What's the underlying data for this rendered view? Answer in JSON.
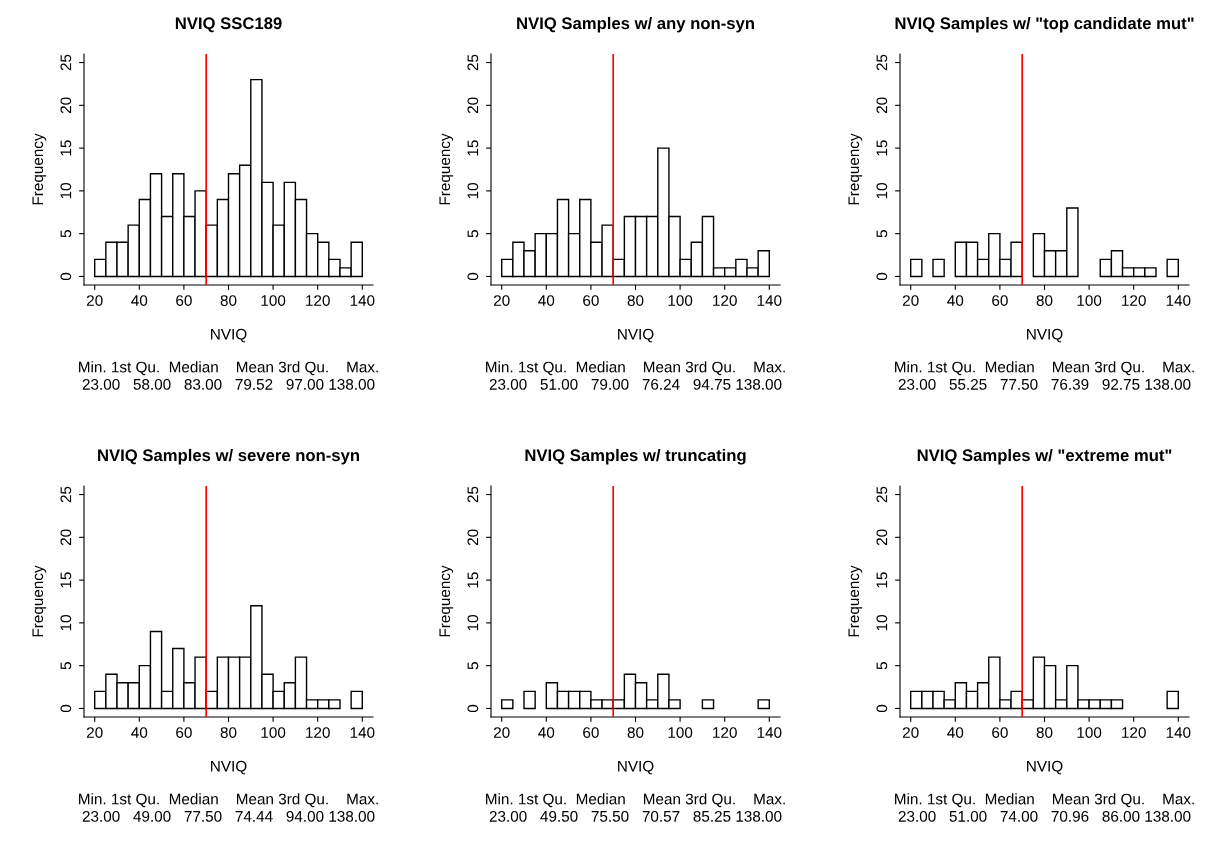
{
  "chart_data": [
    {
      "type": "histogram",
      "title": "NVIQ SSC189",
      "xlabel": "NVIQ",
      "ylabel": "Frequency",
      "bins": [
        20,
        25,
        30,
        35,
        40,
        45,
        50,
        55,
        60,
        65,
        70,
        75,
        80,
        85,
        90,
        95,
        100,
        105,
        110,
        115,
        120,
        125,
        130,
        135,
        140
      ],
      "values": [
        2,
        4,
        4,
        6,
        9,
        12,
        7,
        12,
        7,
        10,
        6,
        9,
        12,
        13,
        23,
        11,
        6,
        11,
        9,
        5,
        4,
        2,
        1,
        4
      ],
      "color": "#ffffff",
      "xlim": [
        15.2,
        144.8
      ],
      "ylim": [
        -1,
        26
      ],
      "xticks": [
        20,
        40,
        60,
        80,
        100,
        120,
        140
      ],
      "yticks": [
        0,
        5,
        10,
        15,
        20,
        25
      ],
      "grid": false,
      "ref_lines": [
        {
          "axis": "x",
          "value": 70,
          "color": "#ff0000"
        }
      ],
      "annotations": [
        "Min. 1st Qu.  Median    Mean 3rd Qu.    Max.",
        "23.00   58.00   83.00   79.52   97.00 138.00"
      ]
    },
    {
      "type": "histogram",
      "title": "NVIQ Samples w/ any non-syn",
      "xlabel": "NVIQ",
      "ylabel": "Frequency",
      "bins": [
        20,
        25,
        30,
        35,
        40,
        45,
        50,
        55,
        60,
        65,
        70,
        75,
        80,
        85,
        90,
        95,
        100,
        105,
        110,
        115,
        120,
        125,
        130,
        135,
        140
      ],
      "values": [
        2,
        4,
        3,
        5,
        5,
        9,
        5,
        9,
        4,
        6,
        2,
        7,
        7,
        7,
        15,
        7,
        2,
        4,
        7,
        1,
        1,
        2,
        1,
        3
      ],
      "color": "#ffffff",
      "xlim": [
        15.2,
        144.8
      ],
      "ylim": [
        -1,
        26
      ],
      "xticks": [
        20,
        40,
        60,
        80,
        100,
        120,
        140
      ],
      "yticks": [
        0,
        5,
        10,
        15,
        20,
        25
      ],
      "grid": false,
      "ref_lines": [
        {
          "axis": "x",
          "value": 70,
          "color": "#ff0000"
        }
      ],
      "annotations": [
        "Min. 1st Qu.  Median    Mean 3rd Qu.    Max.",
        "23.00   51.00   79.00   76.24   94.75 138.00"
      ]
    },
    {
      "type": "histogram",
      "title": "NVIQ Samples w/ \"top candidate mut\"",
      "xlabel": "NVIQ",
      "ylabel": "Frequency",
      "bins": [
        20,
        25,
        30,
        35,
        40,
        45,
        50,
        55,
        60,
        65,
        70,
        75,
        80,
        85,
        90,
        95,
        100,
        105,
        110,
        115,
        120,
        125,
        130,
        135,
        140
      ],
      "values": [
        2,
        0,
        2,
        0,
        4,
        4,
        2,
        5,
        2,
        4,
        0,
        5,
        3,
        3,
        8,
        0,
        0,
        2,
        3,
        1,
        1,
        1,
        0,
        2
      ],
      "color": "#ffffff",
      "xlim": [
        15.2,
        144.8
      ],
      "ylim": [
        -1,
        26
      ],
      "xticks": [
        20,
        40,
        60,
        80,
        100,
        120,
        140
      ],
      "yticks": [
        0,
        5,
        10,
        15,
        20,
        25
      ],
      "grid": false,
      "ref_lines": [
        {
          "axis": "x",
          "value": 70,
          "color": "#ff0000"
        }
      ],
      "annotations": [
        "Min. 1st Qu.  Median    Mean 3rd Qu.    Max.",
        "23.00   55.25   77.50   76.39   92.75 138.00"
      ]
    },
    {
      "type": "histogram",
      "title": "NVIQ Samples w/ severe non-syn",
      "xlabel": "NVIQ",
      "ylabel": "Frequency",
      "bins": [
        20,
        25,
        30,
        35,
        40,
        45,
        50,
        55,
        60,
        65,
        70,
        75,
        80,
        85,
        90,
        95,
        100,
        105,
        110,
        115,
        120,
        125,
        130,
        135,
        140
      ],
      "values": [
        2,
        4,
        3,
        3,
        5,
        9,
        2,
        7,
        3,
        6,
        2,
        6,
        6,
        6,
        12,
        4,
        2,
        3,
        6,
        1,
        1,
        1,
        0,
        2
      ],
      "color": "#ffffff",
      "xlim": [
        15.2,
        144.8
      ],
      "ylim": [
        -1,
        26
      ],
      "xticks": [
        20,
        40,
        60,
        80,
        100,
        120,
        140
      ],
      "yticks": [
        0,
        5,
        10,
        15,
        20,
        25
      ],
      "grid": false,
      "ref_lines": [
        {
          "axis": "x",
          "value": 70,
          "color": "#ff0000"
        }
      ],
      "annotations": [
        "Min. 1st Qu.  Median    Mean 3rd Qu.    Max.",
        "23.00   49.00   77.50   74.44   94.00 138.00"
      ]
    },
    {
      "type": "histogram",
      "title": "NVIQ Samples w/ truncating",
      "xlabel": "NVIQ",
      "ylabel": "Frequency",
      "bins": [
        20,
        25,
        30,
        35,
        40,
        45,
        50,
        55,
        60,
        65,
        70,
        75,
        80,
        85,
        90,
        95,
        100,
        105,
        110,
        115,
        120,
        125,
        130,
        135,
        140
      ],
      "values": [
        1,
        0,
        2,
        0,
        3,
        2,
        2,
        2,
        1,
        1,
        1,
        4,
        3,
        1,
        4,
        1,
        0,
        0,
        1,
        0,
        0,
        0,
        0,
        1
      ],
      "color": "#ffffff",
      "xlim": [
        15.2,
        144.8
      ],
      "ylim": [
        -1,
        26
      ],
      "xticks": [
        20,
        40,
        60,
        80,
        100,
        120,
        140
      ],
      "yticks": [
        0,
        5,
        10,
        15,
        20,
        25
      ],
      "grid": false,
      "ref_lines": [
        {
          "axis": "x",
          "value": 70,
          "color": "#ff0000"
        }
      ],
      "annotations": [
        "Min. 1st Qu.  Median    Mean 3rd Qu.    Max.",
        "23.00   49.50   75.50   70.57   85.25 138.00"
      ]
    },
    {
      "type": "histogram",
      "title": "NVIQ Samples w/ \"extreme mut\"",
      "xlabel": "NVIQ",
      "ylabel": "Frequency",
      "bins": [
        20,
        25,
        30,
        35,
        40,
        45,
        50,
        55,
        60,
        65,
        70,
        75,
        80,
        85,
        90,
        95,
        100,
        105,
        110,
        115,
        120,
        125,
        130,
        135,
        140
      ],
      "values": [
        2,
        2,
        2,
        1,
        3,
        2,
        3,
        6,
        1,
        2,
        1,
        6,
        5,
        1,
        5,
        1,
        1,
        1,
        1,
        0,
        0,
        0,
        0,
        2
      ],
      "color": "#ffffff",
      "xlim": [
        15.2,
        144.8
      ],
      "ylim": [
        -1,
        26
      ],
      "xticks": [
        20,
        40,
        60,
        80,
        100,
        120,
        140
      ],
      "yticks": [
        0,
        5,
        10,
        15,
        20,
        25
      ],
      "grid": false,
      "ref_lines": [
        {
          "axis": "x",
          "value": 70,
          "color": "#ff0000"
        }
      ],
      "annotations": [
        "Min. 1st Qu.  Median    Mean 3rd Qu.    Max.",
        "23.00   51.00   74.00   70.96   86.00 138.00"
      ]
    }
  ]
}
